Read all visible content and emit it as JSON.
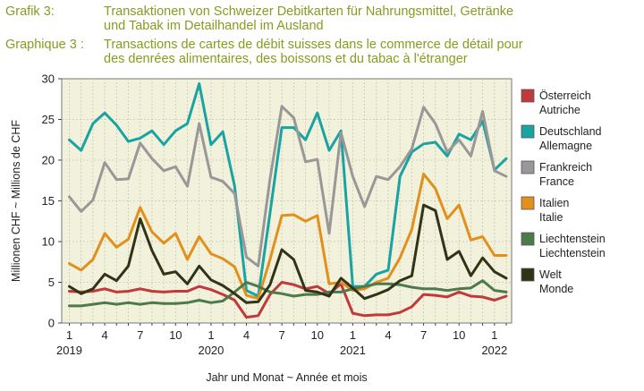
{
  "header": {
    "de_label": "Grafik 3:",
    "de_line1": "Transaktionen von Schweizer Debitkarten für Nahrungsmittel, Getränke",
    "de_line2": "und Tabak im Detailhandel im Ausland",
    "fr_label": "Graphique 3 :",
    "fr_line1": "Transactions de cartes de débit suisses dans le commerce de détail pour",
    "fr_line2": "des denrées alimentaires, des boissons et du tabac à l'étranger"
  },
  "colors": {
    "plot_bg": "#f2f1dc",
    "grid": "#c9c8b4",
    "title": "#8a9a1e"
  },
  "chart_data": {
    "type": "line",
    "xlabel": "Jahr und Monat  ~  Année et mois",
    "ylabel": "Millionen CHF  ~  Millions de CHF",
    "ylim": [
      0,
      30
    ],
    "yticks": [
      0,
      5,
      10,
      15,
      20,
      25,
      30
    ],
    "grid": true,
    "legend_position": "right",
    "x": [
      "2019-01",
      "2019-02",
      "2019-03",
      "2019-04",
      "2019-05",
      "2019-06",
      "2019-07",
      "2019-08",
      "2019-09",
      "2019-10",
      "2019-11",
      "2019-12",
      "2020-01",
      "2020-02",
      "2020-03",
      "2020-04",
      "2020-05",
      "2020-06",
      "2020-07",
      "2020-08",
      "2020-09",
      "2020-10",
      "2020-11",
      "2020-12",
      "2021-01",
      "2021-02",
      "2021-03",
      "2021-04",
      "2021-05",
      "2021-06",
      "2021-07",
      "2021-08",
      "2021-09",
      "2021-10",
      "2021-11",
      "2021-12",
      "2022-01",
      "2022-02"
    ],
    "x_ticks": [
      {
        "index": 0,
        "month": "1",
        "year": "2019"
      },
      {
        "index": 3,
        "month": "4",
        "year": ""
      },
      {
        "index": 6,
        "month": "7",
        "year": ""
      },
      {
        "index": 9,
        "month": "10",
        "year": ""
      },
      {
        "index": 12,
        "month": "1",
        "year": "2020"
      },
      {
        "index": 15,
        "month": "4",
        "year": ""
      },
      {
        "index": 18,
        "month": "7",
        "year": ""
      },
      {
        "index": 21,
        "month": "10",
        "year": ""
      },
      {
        "index": 24,
        "month": "1",
        "year": "2021"
      },
      {
        "index": 27,
        "month": "4",
        "year": ""
      },
      {
        "index": 30,
        "month": "7",
        "year": ""
      },
      {
        "index": 33,
        "month": "10",
        "year": ""
      },
      {
        "index": 36,
        "month": "1",
        "year": "2022"
      }
    ],
    "series": [
      {
        "name": "Österreich",
        "name2": "Autriche",
        "color": "#c0393b",
        "values": [
          3.9,
          3.8,
          3.9,
          4.2,
          3.8,
          3.9,
          4.2,
          3.9,
          3.8,
          3.9,
          3.9,
          4.5,
          4.1,
          3.5,
          2.8,
          0.7,
          0.9,
          3.5,
          5.0,
          4.7,
          4.2,
          4.5,
          3.6,
          4.8,
          1.2,
          0.9,
          1.0,
          1.0,
          1.3,
          2.0,
          3.5,
          3.4,
          3.2,
          3.8,
          3.3,
          3.2,
          2.8,
          3.3
        ]
      },
      {
        "name": "Deutschland",
        "name2": "Allemagne",
        "color": "#1aa3a3",
        "values": [
          22.5,
          21.2,
          24.5,
          25.8,
          24.3,
          22.3,
          22.7,
          23.6,
          21.9,
          23.6,
          24.5,
          29.4,
          21.9,
          23.5,
          16.8,
          4.0,
          3.3,
          13.5,
          24.0,
          24.0,
          22.5,
          25.8,
          21.2,
          23.6,
          4.5,
          4.5,
          6.0,
          6.5,
          18.0,
          21.0,
          22.0,
          22.2,
          20.5,
          23.2,
          22.5,
          24.8,
          18.8,
          20.2
        ]
      },
      {
        "name": "Frankreich",
        "name2": "France",
        "color": "#999797",
        "values": [
          15.5,
          13.7,
          15.1,
          19.7,
          17.6,
          17.7,
          22.1,
          20.2,
          18.7,
          19.2,
          16.8,
          24.5,
          17.9,
          17.4,
          15.9,
          8.1,
          7.0,
          17.7,
          26.6,
          25.2,
          19.8,
          20.1,
          11.0,
          23.4,
          18.0,
          14.3,
          18.0,
          17.6,
          19.2,
          21.4,
          26.5,
          24.5,
          21.0,
          22.5,
          20.5,
          26.0,
          18.7,
          18.0
        ]
      },
      {
        "name": "Italien",
        "name2": "Italie",
        "color": "#e2901c",
        "values": [
          7.3,
          6.5,
          7.8,
          11.0,
          9.3,
          10.3,
          14.2,
          11.2,
          9.8,
          11.0,
          7.8,
          10.6,
          8.5,
          7.9,
          6.9,
          3.4,
          3.0,
          7.8,
          13.2,
          13.3,
          12.5,
          13.2,
          4.8,
          5.0,
          4.0,
          4.2,
          5.0,
          5.5,
          8.0,
          11.5,
          18.3,
          16.5,
          12.8,
          14.5,
          10.2,
          10.6,
          8.3,
          8.3
        ]
      },
      {
        "name": "Liechtenstein",
        "name2": "Liechtenstein",
        "color": "#4d7a4a",
        "values": [
          2.1,
          2.1,
          2.3,
          2.5,
          2.3,
          2.5,
          2.3,
          2.5,
          2.4,
          2.4,
          2.5,
          2.8,
          2.5,
          2.7,
          3.8,
          5.0,
          4.5,
          3.8,
          3.6,
          3.3,
          3.5,
          3.5,
          3.8,
          3.8,
          4.2,
          4.5,
          4.8,
          4.8,
          4.7,
          4.4,
          4.2,
          4.2,
          4.0,
          4.2,
          4.3,
          5.2,
          4.0,
          3.8
        ]
      },
      {
        "name": "Welt",
        "name2": "Monde",
        "color": "#2f3416",
        "values": [
          4.5,
          3.6,
          4.2,
          6.0,
          5.2,
          7.0,
          12.8,
          8.9,
          6.0,
          6.3,
          4.8,
          7.0,
          5.3,
          4.6,
          3.6,
          2.5,
          2.6,
          4.7,
          9.0,
          7.8,
          4.0,
          3.8,
          3.3,
          5.5,
          4.3,
          3.0,
          3.5,
          4.1,
          5.2,
          5.8,
          14.5,
          13.8,
          7.8,
          8.8,
          5.8,
          8.0,
          6.3,
          5.5
        ]
      }
    ]
  }
}
